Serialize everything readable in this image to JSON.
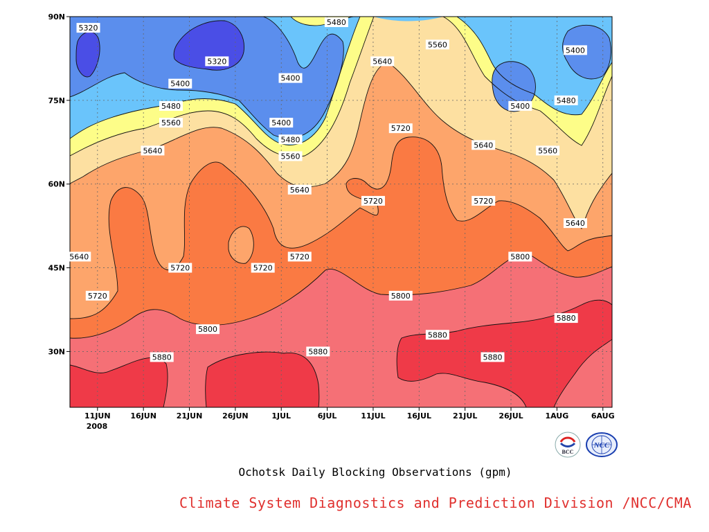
{
  "chart_data": {
    "type": "heatmap",
    "title": "Ochotsk Daily Blocking Observations (gpm)",
    "xlabel": "",
    "ylabel": "",
    "x_ticks": [
      "11JUN",
      "16JUN",
      "21JUN",
      "26JUN",
      "1JUL",
      "6JUL",
      "11JUL",
      "16JUL",
      "21JUL",
      "26JUL",
      "1AUG",
      "6AUG"
    ],
    "x_year_label": "2008",
    "x_range": [
      "2008-06-08",
      "2008-08-06"
    ],
    "y_ticks": [
      "30N",
      "45N",
      "60N",
      "75N",
      "90N"
    ],
    "y_range": [
      20,
      90
    ],
    "contour_levels": [
      5320,
      5400,
      5480,
      5560,
      5640,
      5720,
      5800,
      5880
    ],
    "level_colors": [
      "#4a4ee6",
      "#5b8eed",
      "#6ac4fb",
      "#fdfd88",
      "#fde0a1",
      "#fda56b",
      "#fa7a43",
      "#f57076",
      "#ef3a48"
    ],
    "contour_labels": [
      {
        "level": 5320,
        "date": "2008-06-10",
        "lat": 88
      },
      {
        "level": 5320,
        "date": "2008-06-24",
        "lat": 82
      },
      {
        "level": 5400,
        "date": "2008-06-20",
        "lat": 78
      },
      {
        "level": 5400,
        "date": "2008-07-02",
        "lat": 79
      },
      {
        "level": 5400,
        "date": "2008-07-01",
        "lat": 71
      },
      {
        "level": 5400,
        "date": "2008-07-27",
        "lat": 74
      },
      {
        "level": 5400,
        "date": "2008-08-02",
        "lat": 84
      },
      {
        "level": 5480,
        "date": "2008-07-07",
        "lat": 89
      },
      {
        "level": 5480,
        "date": "2008-06-19",
        "lat": 74
      },
      {
        "level": 5480,
        "date": "2008-07-02",
        "lat": 68
      },
      {
        "level": 5480,
        "date": "2008-08-01",
        "lat": 75
      },
      {
        "level": 5560,
        "date": "2008-06-19",
        "lat": 71
      },
      {
        "level": 5560,
        "date": "2008-07-02",
        "lat": 65
      },
      {
        "level": 5560,
        "date": "2008-07-18",
        "lat": 85
      },
      {
        "level": 5560,
        "date": "2008-07-30",
        "lat": 66
      },
      {
        "level": 5640,
        "date": "2008-06-17",
        "lat": 66
      },
      {
        "level": 5640,
        "date": "2008-07-03",
        "lat": 59
      },
      {
        "level": 5640,
        "date": "2008-07-12",
        "lat": 82
      },
      {
        "level": 5640,
        "date": "2008-07-23",
        "lat": 67
      },
      {
        "level": 5640,
        "date": "2008-06-09",
        "lat": 47
      },
      {
        "level": 5640,
        "date": "2008-08-02",
        "lat": 53
      },
      {
        "level": 5720,
        "date": "2008-07-14",
        "lat": 70
      },
      {
        "level": 5720,
        "date": "2008-07-11",
        "lat": 57
      },
      {
        "level": 5720,
        "date": "2008-07-23",
        "lat": 57
      },
      {
        "level": 5720,
        "date": "2008-06-20",
        "lat": 45
      },
      {
        "level": 5720,
        "date": "2008-06-29",
        "lat": 45
      },
      {
        "level": 5720,
        "date": "2008-07-03",
        "lat": 47
      },
      {
        "level": 5720,
        "date": "2008-06-11",
        "lat": 40
      },
      {
        "level": 5800,
        "date": "2008-06-23",
        "lat": 34
      },
      {
        "level": 5800,
        "date": "2008-07-14",
        "lat": 40
      },
      {
        "level": 5800,
        "date": "2008-07-27",
        "lat": 47
      },
      {
        "level": 5880,
        "date": "2008-06-18",
        "lat": 29
      },
      {
        "level": 5880,
        "date": "2008-07-05",
        "lat": 30
      },
      {
        "level": 5880,
        "date": "2008-07-18",
        "lat": 33
      },
      {
        "level": 5880,
        "date": "2008-07-24",
        "lat": 29
      },
      {
        "level": 5880,
        "date": "2008-08-01",
        "lat": 36
      }
    ]
  },
  "caption": "Ochotsk Daily Blocking Observations (gpm)",
  "credit": "Climate System Diagnostics and Prediction Division /NCC/CMA",
  "logos": [
    {
      "name": "bcc-logo-icon",
      "text": "BCC"
    },
    {
      "name": "ncc-logo-icon",
      "text": "NCC"
    }
  ]
}
